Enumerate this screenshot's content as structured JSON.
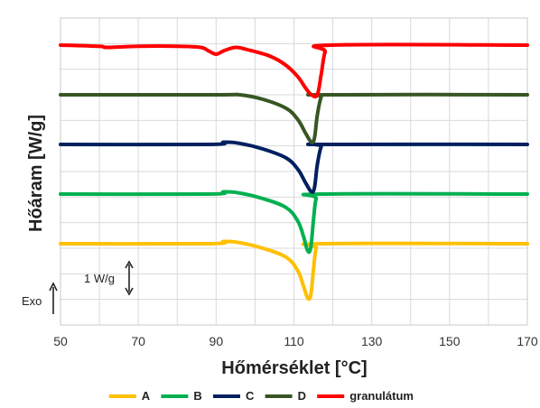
{
  "chart_data": {
    "type": "line",
    "title": "",
    "xlabel": "Hőmérséklet [°C]",
    "ylabel": "Hőáram [W/g]",
    "xlim": [
      50,
      170
    ],
    "x_ticks": [
      50,
      70,
      90,
      110,
      130,
      150,
      170
    ],
    "grid": true,
    "legend_position": "bottom",
    "annotations": {
      "scale_bar": "1 W/g",
      "exo": "Exo"
    },
    "series": [
      {
        "name": "A",
        "color": "#ffc000",
        "baseline": 0,
        "points": [
          [
            50,
            0
          ],
          [
            88,
            0
          ],
          [
            92,
            0.1
          ],
          [
            96,
            0.05
          ],
          [
            102,
            -0.2
          ],
          [
            108,
            -0.6
          ],
          [
            111,
            -1.2
          ],
          [
            112.5,
            -1.9
          ],
          [
            113.5,
            -2.4
          ],
          [
            114.3,
            -2.3
          ],
          [
            115,
            -1.2
          ],
          [
            115.7,
            -0.2
          ],
          [
            117,
            0
          ],
          [
            170,
            0
          ]
        ]
      },
      {
        "name": "B",
        "color": "#00b050",
        "baseline": 2.2,
        "points": [
          [
            50,
            2.2
          ],
          [
            88,
            2.2
          ],
          [
            92,
            2.3
          ],
          [
            96,
            2.25
          ],
          [
            102,
            2.0
          ],
          [
            108,
            1.6
          ],
          [
            111,
            1.0
          ],
          [
            112.5,
            0.3
          ],
          [
            113.5,
            -0.3
          ],
          [
            114.3,
            -0.2
          ],
          [
            115,
            1.0
          ],
          [
            115.7,
            2.0
          ],
          [
            117,
            2.2
          ],
          [
            170,
            2.2
          ]
        ]
      },
      {
        "name": "C",
        "color": "#002060",
        "baseline": 4.4,
        "points": [
          [
            50,
            4.4
          ],
          [
            88,
            4.4
          ],
          [
            92,
            4.5
          ],
          [
            96,
            4.45
          ],
          [
            102,
            4.2
          ],
          [
            108,
            3.8
          ],
          [
            111,
            3.3
          ],
          [
            113,
            2.7
          ],
          [
            114.5,
            2.3
          ],
          [
            115.3,
            2.5
          ],
          [
            116,
            3.5
          ],
          [
            117,
            4.3
          ],
          [
            118,
            4.4
          ],
          [
            170,
            4.4
          ]
        ]
      },
      {
        "name": "D",
        "color": "#375623",
        "baseline": 6.6,
        "points": [
          [
            50,
            6.6
          ],
          [
            90,
            6.6
          ],
          [
            96,
            6.6
          ],
          [
            102,
            6.4
          ],
          [
            108,
            6.0
          ],
          [
            111,
            5.5
          ],
          [
            113,
            4.9
          ],
          [
            114.5,
            4.5
          ],
          [
            115.3,
            4.7
          ],
          [
            116,
            5.7
          ],
          [
            117,
            6.5
          ],
          [
            118,
            6.6
          ],
          [
            170,
            6.6
          ]
        ]
      },
      {
        "name": "granulátum",
        "color": "#ff0000",
        "baseline": 8.8,
        "points": [
          [
            50,
            8.8
          ],
          [
            60,
            8.75
          ],
          [
            62,
            8.7
          ],
          [
            70,
            8.75
          ],
          [
            80,
            8.75
          ],
          [
            86,
            8.7
          ],
          [
            88,
            8.55
          ],
          [
            90,
            8.4
          ],
          [
            92,
            8.55
          ],
          [
            95,
            8.7
          ],
          [
            98,
            8.6
          ],
          [
            104,
            8.3
          ],
          [
            108,
            7.9
          ],
          [
            111,
            7.4
          ],
          [
            113,
            6.9
          ],
          [
            114.5,
            6.6
          ],
          [
            116,
            6.6
          ],
          [
            117,
            7.5
          ],
          [
            118,
            8.5
          ],
          [
            119.5,
            8.8
          ],
          [
            170,
            8.8
          ]
        ]
      }
    ]
  }
}
